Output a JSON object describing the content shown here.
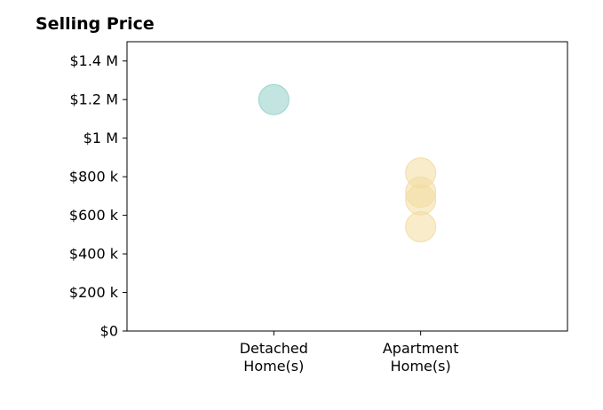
{
  "chart_data": {
    "type": "scatter",
    "title": "Selling Price",
    "xlabel": "",
    "ylabel": "",
    "categories": [
      [
        "Detached",
        "Home(s)"
      ],
      [
        "Apartment",
        "Home(s)"
      ]
    ],
    "yticks": [
      {
        "value": 0,
        "label": "$0"
      },
      {
        "value": 200000,
        "label": "$200 k"
      },
      {
        "value": 400000,
        "label": "$400 k"
      },
      {
        "value": 600000,
        "label": "$600 k"
      },
      {
        "value": 800000,
        "label": "$800 k"
      },
      {
        "value": 1000000,
        "label": "$1 M"
      },
      {
        "value": 1200000,
        "label": "$1.2 M"
      },
      {
        "value": 1400000,
        "label": "$1.4 M"
      }
    ],
    "ylim": [
      0,
      1500000
    ],
    "xlim": [
      -1,
      2
    ],
    "grid": false,
    "series": [
      {
        "category_index": 0,
        "values": [
          1200000
        ],
        "color": "#8fcfc8"
      },
      {
        "category_index": 1,
        "values": [
          820000,
          720000,
          680000,
          540000
        ],
        "color": "#f2dca0"
      }
    ]
  }
}
